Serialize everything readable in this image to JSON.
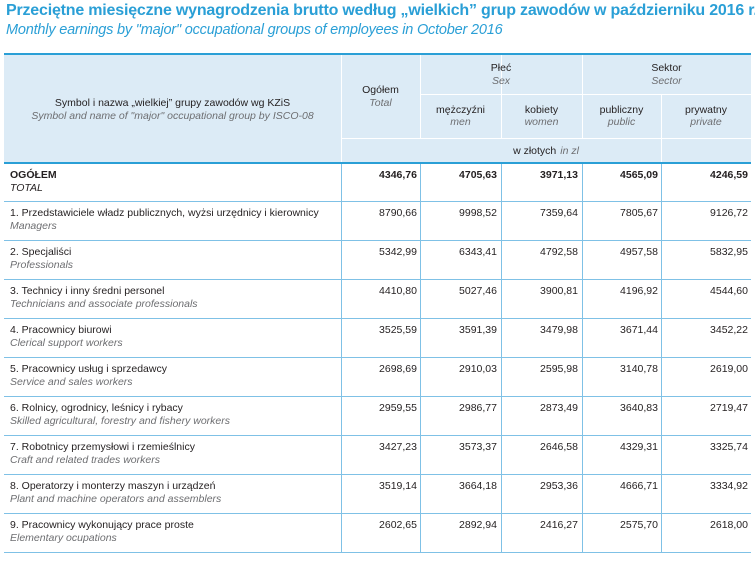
{
  "title": {
    "pl": "Przeciętne miesięczne wynagrodzenia brutto według „wielkich” grup zawodów w październiku 2016 r.",
    "en": "Monthly earnings by \"major\" occupational groups of employees in October 2016"
  },
  "header": {
    "group_label_pl": "Symbol i nazwa „wielkiej” grupy zawodów wg KZiS",
    "group_label_en": "Symbol and name of \"major\" occupational group by ISCO-08",
    "total_pl": "Ogółem",
    "total_en": "Total",
    "sex_pl": "Płeć",
    "sex_en": "Sex",
    "men_pl": "mężczyźni",
    "men_en": "men",
    "women_pl": "kobiety",
    "women_en": "women",
    "sector_pl": "Sektor",
    "sector_en": "Sector",
    "public_pl": "publiczny",
    "public_en": "public",
    "private_pl": "prywatny",
    "private_en": "private",
    "unit_pl": "w złotych",
    "unit_en": "in zl"
  },
  "rows": [
    {
      "pl": "OGÓŁEM",
      "en": "TOTAL",
      "total": "4346,76",
      "men": "4705,63",
      "women": "3971,13",
      "public": "4565,09",
      "private": "4246,59"
    },
    {
      "pl": "1. Przedstawiciele władz publicznych, wyżsi urzędnicy i kierownicy",
      "en": "Managers",
      "total": "8790,66",
      "men": "9998,52",
      "women": "7359,64",
      "public": "7805,67",
      "private": "9126,72"
    },
    {
      "pl": "2. Specjaliści",
      "en": "Professionals",
      "total": "5342,99",
      "men": "6343,41",
      "women": "4792,58",
      "public": "4957,58",
      "private": "5832,95"
    },
    {
      "pl": "3. Technicy i inny średni personel",
      "en": "Technicians and associate professionals",
      "total": "4410,80",
      "men": "5027,46",
      "women": "3900,81",
      "public": "4196,92",
      "private": "4544,60"
    },
    {
      "pl": "4. Pracownicy biurowi",
      "en": "Clerical support workers",
      "total": "3525,59",
      "men": "3591,39",
      "women": "3479,98",
      "public": "3671,44",
      "private": "3452,22"
    },
    {
      "pl": "5. Pracownicy usług i sprzedawcy",
      "en": "Service and sales workers",
      "total": "2698,69",
      "men": "2910,03",
      "women": "2595,98",
      "public": "3140,78",
      "private": "2619,00"
    },
    {
      "pl": "6. Rolnicy, ogrodnicy, leśnicy i rybacy",
      "en": "Skilled agricultural, forestry and fishery workers",
      "total": "2959,55",
      "men": "2986,77",
      "women": "2873,49",
      "public": "3640,83",
      "private": "2719,47"
    },
    {
      "pl": "7. Robotnicy przemysłowi i rzemieślnicy",
      "en": "Craft and related trades workers",
      "total": "3427,23",
      "men": "3573,37",
      "women": "2646,58",
      "public": "4329,31",
      "private": "3325,74"
    },
    {
      "pl": "8. Operatorzy i monterzy maszyn i urządzeń",
      "en": "Plant and machine operators  and assemblers",
      "total": "3519,14",
      "men": "3664,18",
      "women": "2953,36",
      "public": "4666,71",
      "private": "3334,92"
    },
    {
      "pl": "9. Pracownicy wykonujący prace proste",
      "en": "Elementary ocupations",
      "total": "2602,65",
      "men": "2892,94",
      "women": "2416,27",
      "public": "2575,70",
      "private": "2618,00"
    }
  ]
}
